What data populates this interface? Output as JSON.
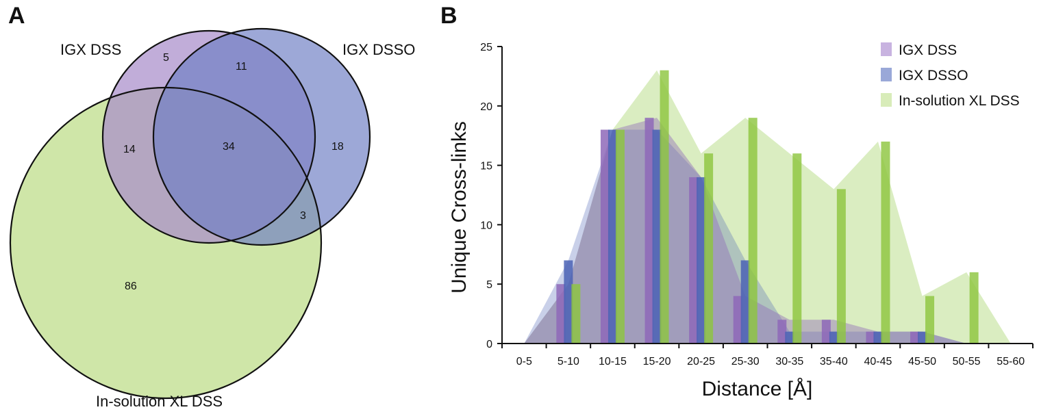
{
  "panels": {
    "a_label": "A",
    "b_label": "B"
  },
  "venn": {
    "sets": [
      {
        "name": "IGX DSS",
        "color": "#a98dcb"
      },
      {
        "name": "IGX DSSO",
        "color": "#7f8fcb"
      },
      {
        "name": "In-solution XL DSS",
        "color": "#cfe6a8"
      }
    ],
    "regions": {
      "dss_only": "5",
      "dss_dsso": "11",
      "dss_insolution": "14",
      "all_three": "34",
      "dsso_only": "18",
      "dsso_insolution": "3",
      "insolution_only": "86"
    }
  },
  "chart_data": {
    "type": "bar",
    "categories": [
      "0-5",
      "5-10",
      "10-15",
      "15-20",
      "20-25",
      "25-30",
      "30-35",
      "35-40",
      "40-45",
      "45-50",
      "50-55",
      "55-60"
    ],
    "series": [
      {
        "name": "IGX DSS",
        "color": "#8e68b8",
        "values": [
          0,
          5,
          18,
          19,
          14,
          4,
          2,
          2,
          1,
          1,
          0,
          0
        ]
      },
      {
        "name": "IGX DSSO",
        "color": "#4b63b5",
        "values": [
          0,
          7,
          18,
          18,
          14,
          7,
          1,
          1,
          1,
          1,
          0,
          0
        ]
      },
      {
        "name": "In-solution XL DSS",
        "color": "#8dc63f",
        "values": [
          0,
          5,
          18,
          23,
          16,
          19,
          16,
          13,
          17,
          4,
          6,
          0
        ]
      }
    ],
    "xlabel": "Distance [Å]",
    "ylabel": "Unique Cross-links",
    "ylim": [
      0,
      25
    ],
    "yticks": [
      0,
      5,
      10,
      15,
      20,
      25
    ],
    "legend_position": "top-right",
    "grid": false
  }
}
